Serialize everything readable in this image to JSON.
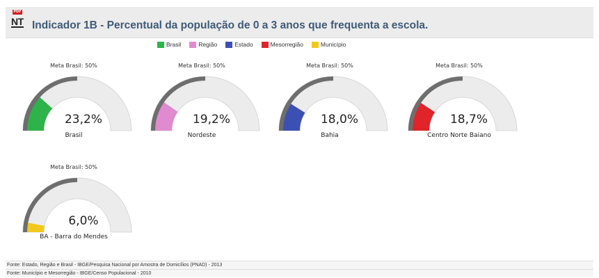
{
  "header": {
    "badge_top": "PDF",
    "badge_text": "NT",
    "title": "Indicador 1B - Percentual da população de 0 a 3 anos que frequenta a escola."
  },
  "legend": [
    {
      "label": "Brasil",
      "color": "#2db34a"
    },
    {
      "label": "Região",
      "color": "#e08ad0"
    },
    {
      "label": "Estado",
      "color": "#3c50b4"
    },
    {
      "label": "Mesorregião",
      "color": "#e0242a"
    },
    {
      "label": "Município",
      "color": "#f3c81e"
    }
  ],
  "chart_data": {
    "type": "gauge",
    "min": 0,
    "max": 100,
    "target_label": "Meta Brasil: 50%",
    "target_value": 50,
    "series": [
      {
        "name": "Brasil",
        "value": 23.2,
        "display": "23,2%",
        "color": "#2db34a"
      },
      {
        "name": "Nordeste",
        "value": 19.2,
        "display": "19,2%",
        "color": "#e08ad0"
      },
      {
        "name": "Bahia",
        "value": 18.0,
        "display": "18,0%",
        "color": "#3c50b4"
      },
      {
        "name": "Centro Norte Baiano",
        "value": 18.7,
        "display": "18,7%",
        "color": "#e0242a"
      },
      {
        "name": "BA - Barra do Mendes",
        "value": 6.0,
        "display": "6,0%",
        "color": "#f3c81e"
      }
    ]
  },
  "footer": {
    "line1": "Fonte: Estado, Região e Brasil - IBGE/Pesquisa Nacional por Amostra de Domicílios (PNAD) - 2013",
    "line2": "Fonte: Município e Mesorregião - IBGE/Censo Populacional - 2010"
  }
}
